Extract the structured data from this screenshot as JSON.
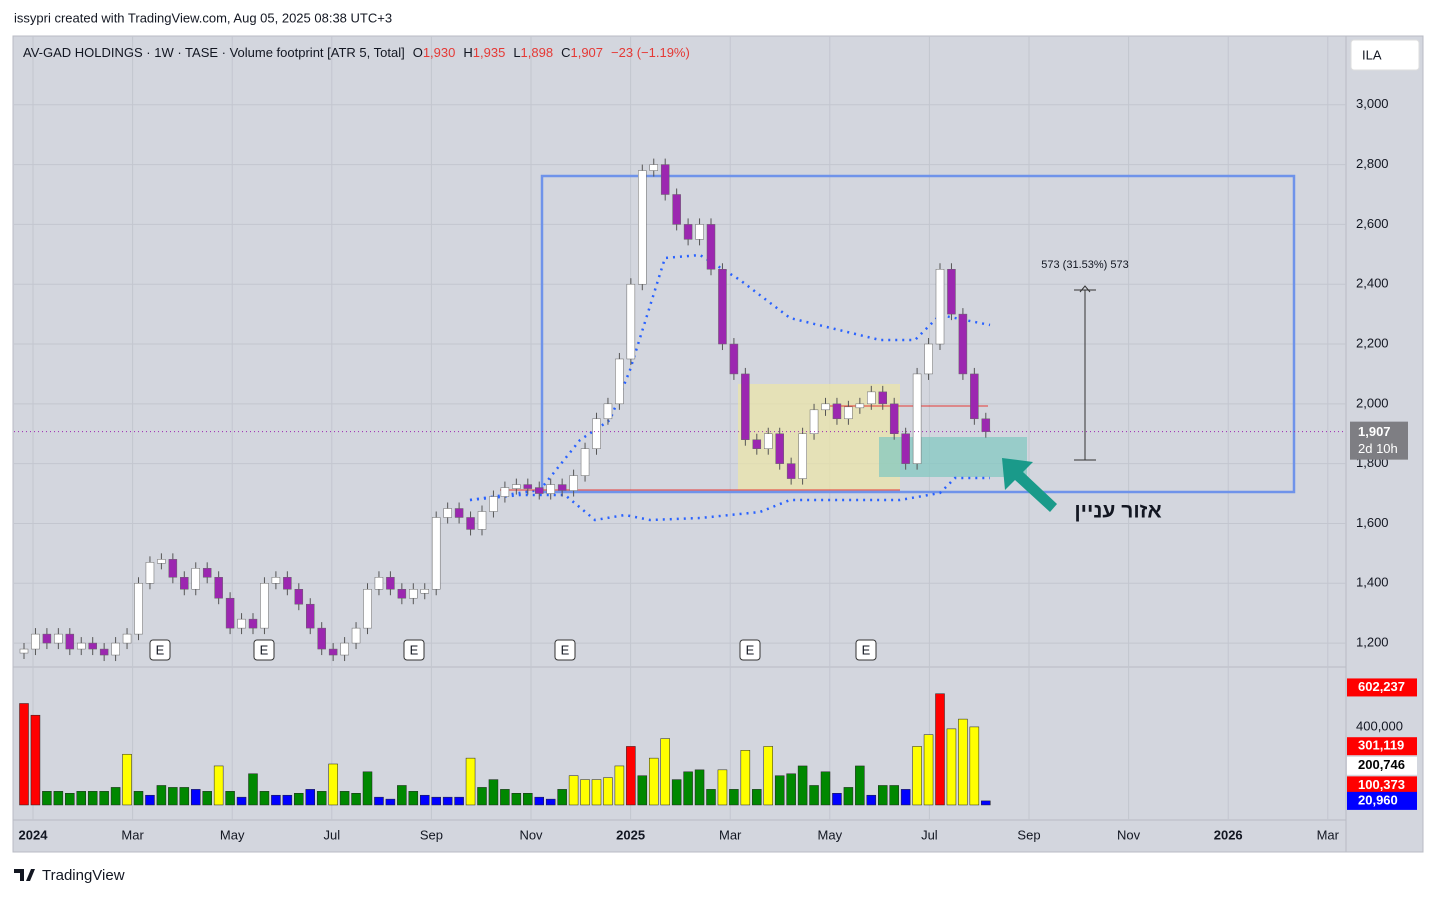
{
  "credit": "issypri created with TradingView.com, Aug 05, 2025 08:38 UTC+3",
  "footer": "TradingView",
  "currency": "ILA",
  "legend": {
    "symbol": "AV-GAD HOLDINGS · 1W · TASE · Volume footprint [ATR 5, Total]",
    "o_label": "O",
    "o": "1,930",
    "h_label": "H",
    "h": "1,935",
    "l_label": "L",
    "l": "1,898",
    "c_label": "C",
    "c": "1,907",
    "change": "−23 (−1.19%)"
  },
  "annotation": "573 (31.53%) 573",
  "zone_label": "אזור עניין",
  "earnings_marker": "E",
  "countdown": "2d 10h",
  "chart_data": {
    "type": "candlestick",
    "close": [
      1180,
      1230,
      1200,
      1230,
      1180,
      1200,
      1180,
      1160,
      1200,
      1230,
      1400,
      1470,
      1480,
      1420,
      1380,
      1450,
      1420,
      1350,
      1250,
      1280,
      1250,
      1400,
      1420,
      1380,
      1330,
      1250,
      1180,
      1160,
      1200,
      1250,
      1380,
      1420,
      1380,
      1350,
      1380,
      1380,
      1620,
      1650,
      1620,
      1580,
      1640,
      1690,
      1720,
      1730,
      1720,
      1700,
      1730,
      1710,
      1760,
      1850,
      1950,
      2000,
      2150,
      2400,
      2780,
      2800,
      2700,
      2600,
      2550,
      2600,
      2450,
      2200,
      2100,
      1880,
      1850,
      1900,
      1800,
      1750,
      1900,
      1980,
      2000,
      1950,
      1990,
      2000,
      2040,
      2000,
      1900,
      1800,
      2100,
      2200,
      2450,
      2300,
      2100,
      1950,
      1907
    ],
    "up_color": "#ffffff",
    "down_color": "#9c27b0",
    "ylim": [
      1120,
      3230
    ],
    "yticks": [
      {
        "value": 1200,
        "label": "1,200"
      },
      {
        "value": 1400,
        "label": "1,400"
      },
      {
        "value": 1600,
        "label": "1,600"
      },
      {
        "value": 1800,
        "label": "1,800"
      },
      {
        "value": 2000,
        "label": "2,000"
      },
      {
        "value": 2200,
        "label": "2,200"
      },
      {
        "value": 2400,
        "label": "2,400"
      },
      {
        "value": 2600,
        "label": "2,600"
      },
      {
        "value": 2800,
        "label": "2,800"
      },
      {
        "value": 3000,
        "label": "3,000"
      }
    ],
    "last_price": {
      "value": 1907,
      "label": "1,907"
    },
    "xticks": [
      "2024",
      "Mar",
      "May",
      "Jul",
      "Sep",
      "Nov",
      "2025",
      "Mar",
      "May",
      "Jul",
      "Sep",
      "Nov",
      "2026",
      "Mar"
    ],
    "grid": true,
    "volume": {
      "values": [
        520000,
        460000,
        70000,
        70000,
        60000,
        70000,
        70000,
        70000,
        90000,
        260000,
        70000,
        50000,
        100000,
        90000,
        90000,
        80000,
        70000,
        200000,
        70000,
        40000,
        160000,
        70000,
        50000,
        50000,
        60000,
        80000,
        70000,
        210000,
        70000,
        60000,
        170000,
        40000,
        30000,
        100000,
        70000,
        50000,
        40000,
        40000,
        40000,
        240000,
        90000,
        130000,
        80000,
        60000,
        60000,
        40000,
        30000,
        80000,
        150000,
        130000,
        130000,
        140000,
        200000,
        300000,
        150000,
        240000,
        340000,
        130000,
        170000,
        180000,
        80000,
        180000,
        80000,
        280000,
        80000,
        300000,
        150000,
        160000,
        200000,
        100000,
        170000,
        60000,
        90000,
        200000,
        50000,
        100000,
        100000,
        80000,
        300000,
        360000,
        570000,
        390000,
        440000,
        400000,
        20960
      ],
      "colors": [
        "#f00",
        "#f00",
        "#080",
        "#080",
        "#080",
        "#080",
        "#080",
        "#080",
        "#080",
        "#ff0",
        "#080",
        "#00f",
        "#080",
        "#080",
        "#080",
        "#00f",
        "#080",
        "#ff0",
        "#080",
        "#00f",
        "#080",
        "#080",
        "#00f",
        "#00f",
        "#080",
        "#00f",
        "#080",
        "#ff0",
        "#080",
        "#080",
        "#080",
        "#00f",
        "#00f",
        "#080",
        "#080",
        "#00f",
        "#00f",
        "#00f",
        "#00f",
        "#ff0",
        "#080",
        "#080",
        "#080",
        "#080",
        "#080",
        "#00f",
        "#00f",
        "#080",
        "#ff0",
        "#ff0",
        "#ff0",
        "#ff0",
        "#ff0",
        "#f00",
        "#080",
        "#ff0",
        "#ff0",
        "#080",
        "#080",
        "#080",
        "#080",
        "#ff0",
        "#080",
        "#ff0",
        "#080",
        "#ff0",
        "#080",
        "#080",
        "#080",
        "#080",
        "#080",
        "#00f",
        "#080",
        "#080",
        "#00f",
        "#080",
        "#080",
        "#00f",
        "#ff0",
        "#ff0",
        "#f00",
        "#ff0",
        "#ff0",
        "#ff0",
        "#00f"
      ],
      "ylim": [
        -77000,
        707000
      ],
      "yticks": [
        {
          "value": 400000,
          "label": "400,000"
        }
      ],
      "levels": [
        {
          "value": 602237,
          "label": "602,237",
          "bg": "#f00",
          "fg": "#fff"
        },
        {
          "value": 301119,
          "label": "301,119",
          "bg": "#f00",
          "fg": "#fff"
        },
        {
          "value": 200746,
          "label": "200,746",
          "bg": "#fff",
          "fg": "#000"
        },
        {
          "value": 100373,
          "label": "100,373",
          "bg": "#f00",
          "fg": "#fff"
        },
        {
          "value": 20960,
          "label": "20,960",
          "bg": "#00f",
          "fg": "#fff"
        }
      ]
    }
  }
}
